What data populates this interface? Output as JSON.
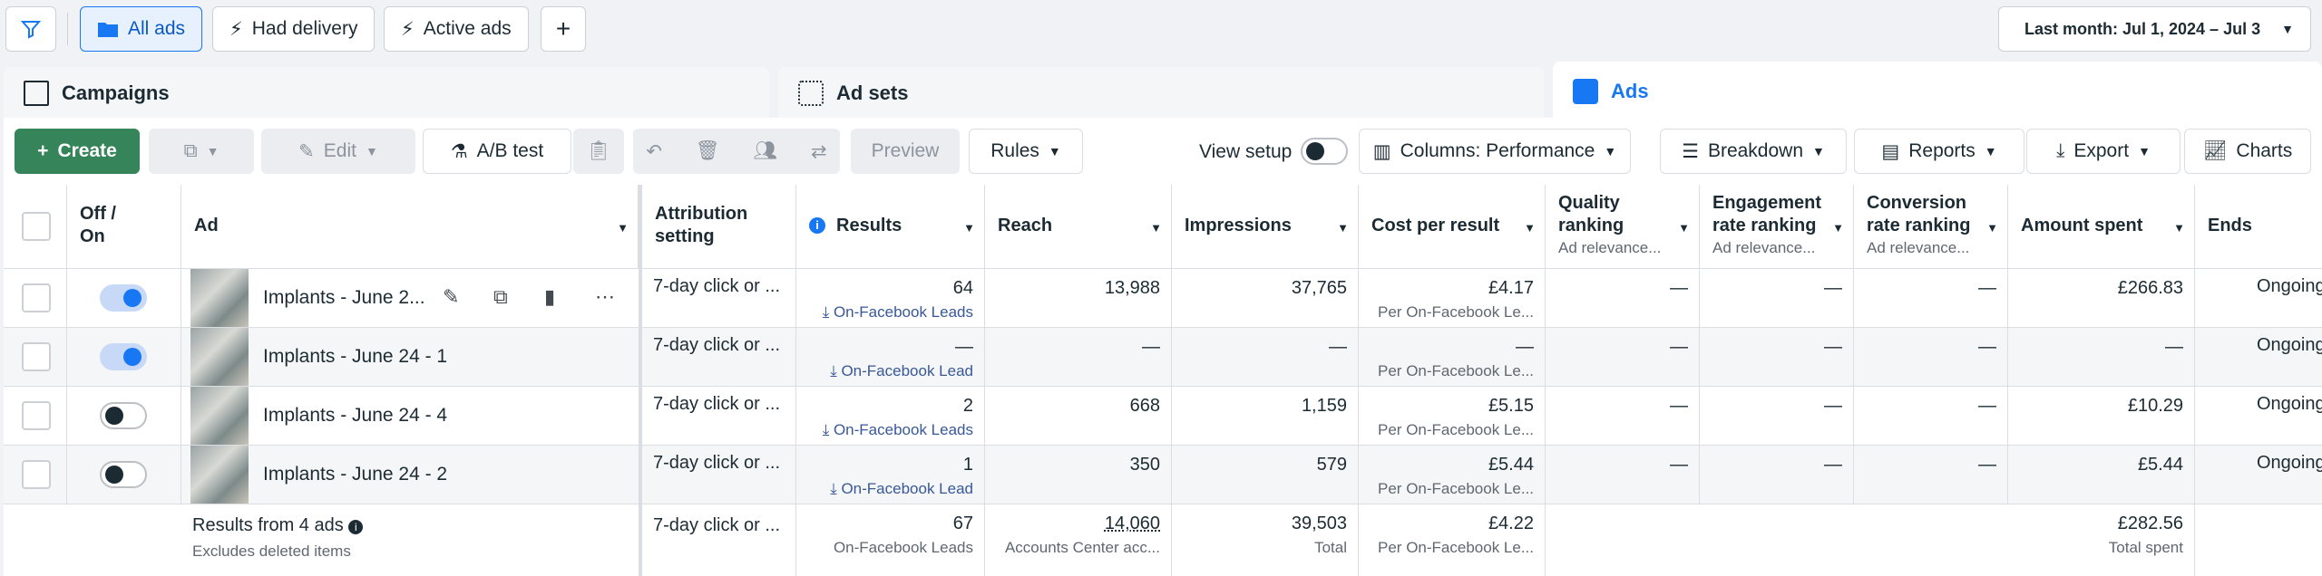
{
  "filters": {
    "all_ads": "All ads",
    "had_delivery": "Had delivery",
    "active_ads": "Active ads",
    "date_range": "Last month: Jul 1, 2024 – Jul 3"
  },
  "tabs": {
    "campaigns": "Campaigns",
    "ad_sets": "Ad sets",
    "ads": "Ads"
  },
  "toolbar": {
    "create": "Create",
    "edit": "Edit",
    "ab_test": "A/B test",
    "preview": "Preview",
    "rules": "Rules",
    "view_setup": "View setup",
    "columns": "Columns: Performance",
    "breakdown": "Breakdown",
    "reports": "Reports",
    "export": "Export",
    "charts": "Charts"
  },
  "headers": {
    "off_on": "Off /\nOn",
    "ad": "Ad",
    "attribution": "Attribution\nsetting",
    "results": "Results",
    "reach": "Reach",
    "impressions": "Impressions",
    "cost_per_result": "Cost per result",
    "quality": "Quality\nranking",
    "engagement": "Engagement\nrate ranking",
    "conversion": "Conversion\nrate ranking",
    "relevance_sub": "Ad relevance...",
    "amount_spent": "Amount spent",
    "ends": "Ends"
  },
  "rows": [
    {
      "name": "Implants - June 2...",
      "on": true,
      "attribution": "7-day click or ...",
      "results": "64",
      "results_type": "On-Facebook Leads",
      "reach": "13,988",
      "impressions": "37,765",
      "cpr": "£4.17",
      "cpr_sub": "Per On-Facebook Le...",
      "quality": "—",
      "engagement": "—",
      "conversion": "—",
      "spent": "£266.83",
      "ends": "Ongoing"
    },
    {
      "name": "Implants - June 24 - 1",
      "on": true,
      "attribution": "7-day click or ...",
      "results": "—",
      "results_type": "On-Facebook Lead",
      "reach": "—",
      "impressions": "—",
      "cpr": "—",
      "cpr_sub": "Per On-Facebook Le...",
      "quality": "—",
      "engagement": "—",
      "conversion": "—",
      "spent": "—",
      "ends": "Ongoing"
    },
    {
      "name": "Implants - June 24 - 4",
      "on": false,
      "attribution": "7-day click or ...",
      "results": "2",
      "results_type": "On-Facebook Leads",
      "reach": "668",
      "impressions": "1,159",
      "cpr": "£5.15",
      "cpr_sub": "Per On-Facebook Le...",
      "quality": "—",
      "engagement": "—",
      "conversion": "—",
      "spent": "£10.29",
      "ends": "Ongoing"
    },
    {
      "name": "Implants - June 24 - 2",
      "on": false,
      "attribution": "7-day click or ...",
      "results": "1",
      "results_type": "On-Facebook Lead",
      "reach": "350",
      "impressions": "579",
      "cpr": "£5.44",
      "cpr_sub": "Per On-Facebook Le...",
      "quality": "—",
      "engagement": "—",
      "conversion": "—",
      "spent": "£5.44",
      "ends": "Ongoing"
    }
  ],
  "summary": {
    "label": "Results from 4 ads",
    "sub": "Excludes deleted items",
    "attribution": "7-day click or ...",
    "results": "67",
    "results_sub": "On-Facebook Leads",
    "reach": "14,060",
    "reach_sub": "Accounts Center acc...",
    "impressions": "39,503",
    "impressions_sub": "Total",
    "cpr": "£4.22",
    "cpr_sub": "Per On-Facebook Le...",
    "spent": "£282.56",
    "spent_sub": "Total spent"
  },
  "colors": {
    "brand_blue": "#1877f2",
    "create_green": "#36855a"
  }
}
